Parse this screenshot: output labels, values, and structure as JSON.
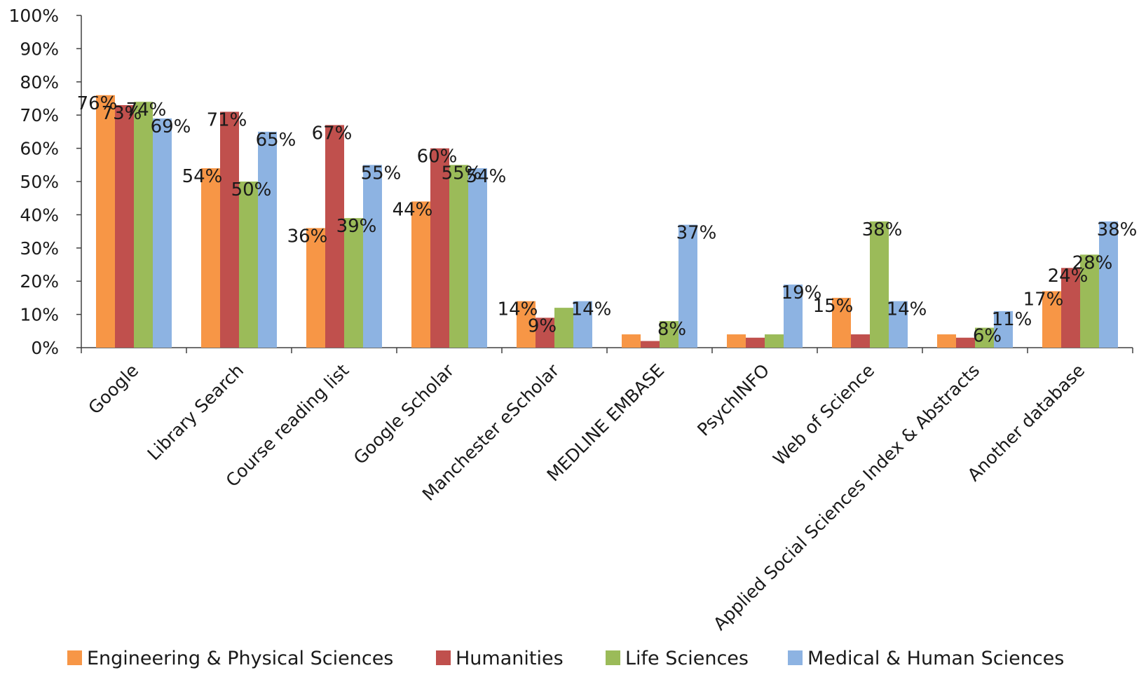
{
  "chart_data": {
    "type": "bar",
    "title": "",
    "xlabel": "",
    "ylabel": "",
    "ylim": [
      0,
      100
    ],
    "y_ticks": [
      "0%",
      "10%",
      "20%",
      "30%",
      "40%",
      "50%",
      "60%",
      "70%",
      "80%",
      "90%",
      "100%"
    ],
    "grid": false,
    "legend_position": "bottom",
    "categories": [
      "Google",
      "Library Search",
      "Course reading list",
      "Google Scholar",
      "Manchester eScholar",
      "MEDLINE EMBASE",
      "PsychINFO",
      "Web of Science",
      "Applied Social Sciences Index & Abstracts",
      "Another database"
    ],
    "series": [
      {
        "name": "Engineering & Physical Sciences",
        "color": "#f79646",
        "values": [
          76,
          54,
          36,
          44,
          14,
          4,
          4,
          15,
          4,
          17
        ],
        "labels": [
          "76%",
          "54%",
          "36%",
          "44%",
          "14%",
          "",
          "",
          "15%",
          "",
          "17%"
        ]
      },
      {
        "name": "Humanities",
        "color": "#c0504d",
        "values": [
          73,
          71,
          67,
          60,
          9,
          2,
          3,
          4,
          3,
          24
        ],
        "labels": [
          "73%",
          "71%",
          "67%",
          "60%",
          "9%",
          "",
          "",
          "",
          "",
          "24%"
        ]
      },
      {
        "name": "Life Sciences",
        "color": "#9bbb59",
        "values": [
          74,
          50,
          39,
          55,
          12,
          8,
          4,
          38,
          6,
          28
        ],
        "labels": [
          "74%",
          "50%",
          "39%",
          "55%",
          "",
          "8%",
          "",
          "38%",
          "6%",
          "28%"
        ]
      },
      {
        "name": "Medical & Human Sciences",
        "color": "#8db3e2",
        "values": [
          69,
          65,
          55,
          54,
          14,
          37,
          19,
          14,
          11,
          38
        ],
        "labels": [
          "69%",
          "65%",
          "55%",
          "54%",
          "14%",
          "37%",
          "19%",
          "14%",
          "11%",
          "38%"
        ]
      }
    ]
  }
}
